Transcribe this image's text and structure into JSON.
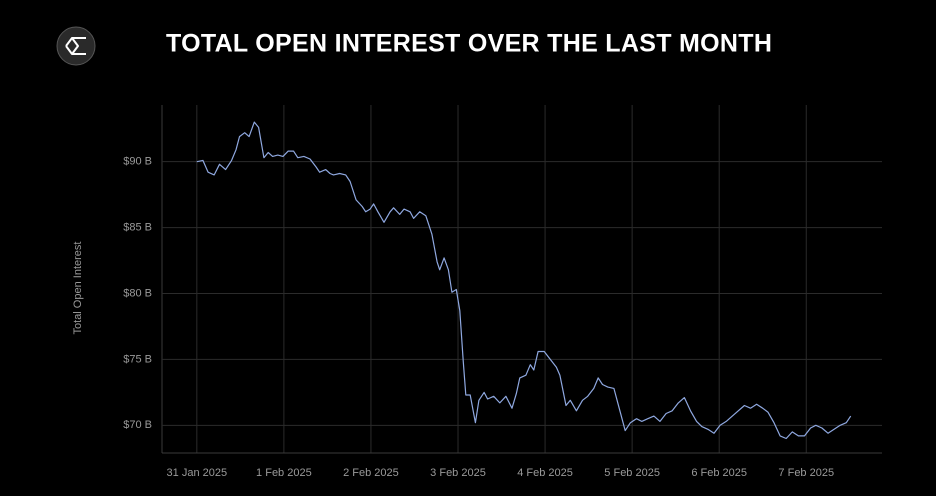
{
  "chart_data": {
    "type": "line",
    "title": "TOTAL OPEN INTEREST OVER THE LAST MONTH",
    "y_label": "Total Open Interest",
    "color": "#8fa8e0",
    "grid": true,
    "x": [
      0,
      0.07,
      0.13,
      0.2,
      0.26,
      0.33,
      0.4,
      0.45,
      0.49,
      0.55,
      0.6,
      0.66,
      0.71,
      0.77,
      0.82,
      0.87,
      0.93,
      0.99,
      1.05,
      1.11,
      1.16,
      1.23,
      1.3,
      1.37,
      1.41,
      1.48,
      1.53,
      1.57,
      1.64,
      1.71,
      1.76,
      1.83,
      1.9,
      1.94,
      1.99,
      2.03,
      2.08,
      2.15,
      2.22,
      2.26,
      2.33,
      2.38,
      2.45,
      2.49,
      2.56,
      2.63,
      2.7,
      2.76,
      2.79,
      2.84,
      2.89,
      2.93,
      2.98,
      3.02,
      3.06,
      3.09,
      3.14,
      3.2,
      3.24,
      3.3,
      3.34,
      3.41,
      3.48,
      3.55,
      3.62,
      3.67,
      3.71,
      3.78,
      3.83,
      3.87,
      3.92,
      3.99,
      4.06,
      4.13,
      4.17,
      4.24,
      4.29,
      4.36,
      4.43,
      4.49,
      4.56,
      4.61,
      4.66,
      4.72,
      4.79,
      4.86,
      4.92,
      4.98,
      5.05,
      5.11,
      5.18,
      5.25,
      5.32,
      5.39,
      5.46,
      5.53,
      5.6,
      5.67,
      5.74,
      5.8,
      5.87,
      5.94,
      6.01,
      6.08,
      6.15,
      6.22,
      6.29,
      6.36,
      6.43,
      6.5,
      6.56,
      6.63,
      6.7,
      6.77,
      6.84,
      6.91,
      6.98,
      7.05,
      7.11,
      7.18,
      7.25,
      7.32,
      7.39,
      7.46,
      7.51
    ],
    "values": [
      90.0,
      90.1,
      89.2,
      89.0,
      89.8,
      89.4,
      90.1,
      90.9,
      91.9,
      92.2,
      91.9,
      93.0,
      92.6,
      90.3,
      90.7,
      90.4,
      90.5,
      90.4,
      90.8,
      90.8,
      90.3,
      90.4,
      90.2,
      89.6,
      89.2,
      89.4,
      89.1,
      89.0,
      89.1,
      89.0,
      88.5,
      87.1,
      86.6,
      86.2,
      86.4,
      86.8,
      86.2,
      85.4,
      86.2,
      86.5,
      86.0,
      86.4,
      86.2,
      85.7,
      86.2,
      85.9,
      84.5,
      82.4,
      81.8,
      82.7,
      81.8,
      80.1,
      80.3,
      78.7,
      74.9,
      72.3,
      72.3,
      70.2,
      71.9,
      72.5,
      72.0,
      72.2,
      71.7,
      72.2,
      71.3,
      72.4,
      73.6,
      73.8,
      74.6,
      74.2,
      75.6,
      75.6,
      75.0,
      74.4,
      73.8,
      71.5,
      71.9,
      71.1,
      71.9,
      72.2,
      72.8,
      73.6,
      73.1,
      72.9,
      72.8,
      71.1,
      69.6,
      70.2,
      70.5,
      70.3,
      70.5,
      70.7,
      70.3,
      70.9,
      71.1,
      71.7,
      72.1,
      71.1,
      70.3,
      69.9,
      69.7,
      69.4,
      70.0,
      70.3,
      70.7,
      71.1,
      71.5,
      71.3,
      71.6,
      71.3,
      71.0,
      70.2,
      69.2,
      69.0,
      69.5,
      69.2,
      69.2,
      69.8,
      70.0,
      69.8,
      69.4,
      69.7,
      70.0,
      70.2,
      70.7
    ],
    "xlim": [
      -0.4,
      7.87
    ],
    "ylim": [
      67.9,
      94.3
    ],
    "xticks": [
      {
        "value": 0,
        "label": "31 Jan 2025"
      },
      {
        "value": 1,
        "label": "1 Feb 2025"
      },
      {
        "value": 2,
        "label": "2 Feb 2025"
      },
      {
        "value": 3,
        "label": "3 Feb 2025"
      },
      {
        "value": 4,
        "label": "4 Feb 2025"
      },
      {
        "value": 5,
        "label": "5 Feb 2025"
      },
      {
        "value": 6,
        "label": "6 Feb 2025"
      },
      {
        "value": 7,
        "label": "7 Feb 2025"
      }
    ],
    "yticks": [
      {
        "value": 70,
        "label": "$70 B"
      },
      {
        "value": 75,
        "label": "$75 B"
      },
      {
        "value": 80,
        "label": "$80 B"
      },
      {
        "value": 85,
        "label": "$85 B"
      },
      {
        "value": 90,
        "label": "$90 B"
      }
    ]
  }
}
